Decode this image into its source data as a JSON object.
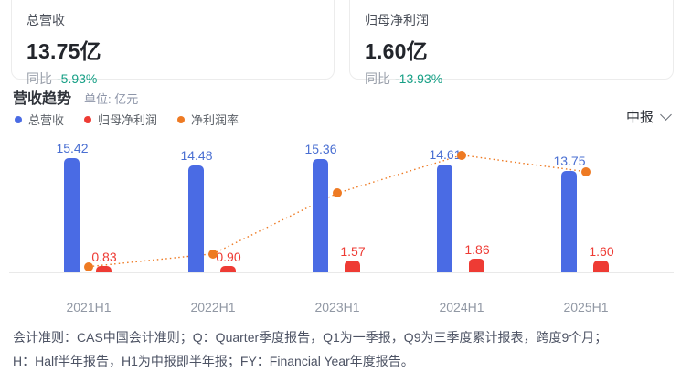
{
  "stats": [
    {
      "label": "总营收",
      "value": "13.75亿",
      "yoy_label": "同比",
      "yoy_value": "-5.93%"
    },
    {
      "label": "归母净利润",
      "value": "1.60亿",
      "yoy_label": "同比",
      "yoy_value": "-13.93%"
    }
  ],
  "section": {
    "title": "营收趋势",
    "unit": "单位: 亿元",
    "period": "中报"
  },
  "legend": [
    {
      "label": "总营收",
      "color": "#4a6be4"
    },
    {
      "label": "归母净利润",
      "color": "#ee3b34"
    },
    {
      "label": "净利润率",
      "color": "#ee7a23"
    }
  ],
  "colors": {
    "revenue_bar": "#4a6be4",
    "revenue_label": "#4a6fd2",
    "profit_bar": "#ee3b34",
    "profit_label": "#ee3b34",
    "margin_line": "#ee7a23",
    "yoy_down": "#17a086"
  },
  "chart_data": {
    "type": "bar",
    "title": "营收趋势",
    "unit": "亿元",
    "categories": [
      "2021H1",
      "2022H1",
      "2023H1",
      "2024H1",
      "2025H1"
    ],
    "series": [
      {
        "name": "总营收",
        "type": "bar",
        "unit": "亿元",
        "values": [
          15.42,
          14.48,
          15.36,
          14.61,
          13.75
        ]
      },
      {
        "name": "归母净利润",
        "type": "bar",
        "unit": "亿元",
        "values": [
          0.83,
          0.9,
          1.57,
          1.86,
          1.6
        ]
      },
      {
        "name": "净利润率",
        "type": "line",
        "unit": "%",
        "style": "dotted",
        "values": [
          5.38,
          6.22,
          10.22,
          12.73,
          11.64
        ]
      }
    ],
    "value_labels": true,
    "legend_position": "top-left",
    "grid": false
  },
  "footnote": {
    "line1": "会计准则：CAS中国会计准则；Q：Quarter季度报告，Q1为一季报，Q9为三季度累计报表，跨度9个月；",
    "line2": "H：Half半年报告，H1为中报即半年报；FY：Financial Year年度报告。"
  }
}
